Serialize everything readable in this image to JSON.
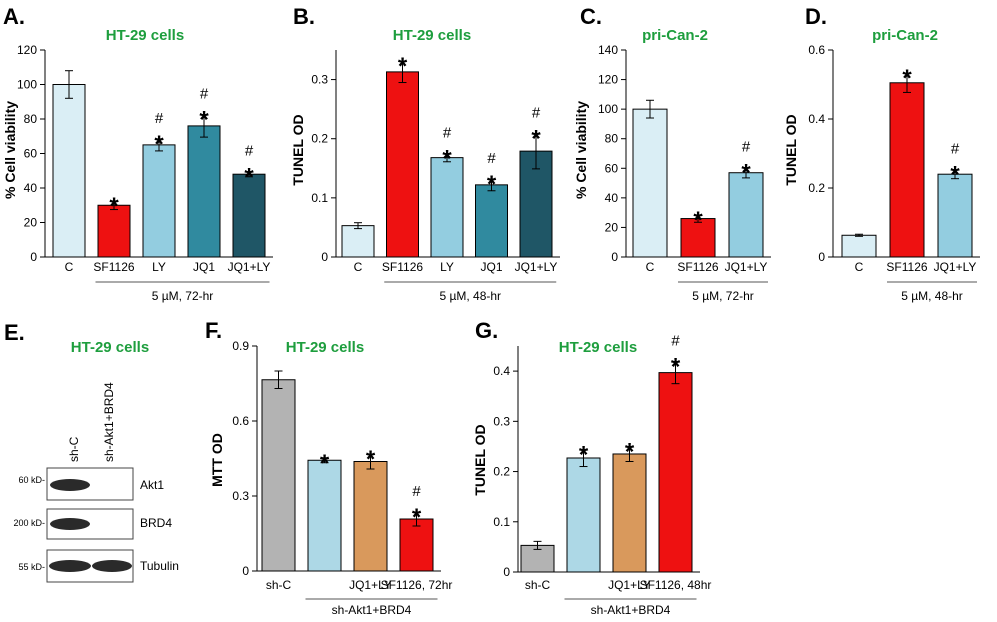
{
  "colors": {
    "ctrl": "#daeef5",
    "sf": "#ee1111",
    "ly": "#93cde0",
    "jq": "#308a9f",
    "jqly_dark": "#1f5666",
    "jqly_light": "#93cde0",
    "shc": "#b3b3b3",
    "shjq": "#add8e6",
    "shjqly": "#d9995c",
    "red_label": "#e02020",
    "title_green": "#1e9e3e"
  },
  "chart_data": [
    {
      "id": "A",
      "letter": "A.",
      "type": "bar",
      "title": "HT-29 cells",
      "ylabel": "% Cell viability",
      "ylim": [
        0,
        120
      ],
      "yticks": [
        0,
        20,
        40,
        60,
        80,
        100,
        120
      ],
      "categories": [
        "C",
        "SF1126",
        "LY",
        "JQ1",
        "JQ1+LY"
      ],
      "values": [
        100,
        30,
        65,
        76,
        48
      ],
      "errors": [
        8,
        2.5,
        3.5,
        6.5,
        1.5
      ],
      "colors": [
        "ctrl",
        "sf",
        "ly",
        "jq",
        "jqly_dark"
      ],
      "red_categories": [
        1
      ],
      "star": [
        false,
        true,
        true,
        true,
        true
      ],
      "hash": [
        false,
        false,
        true,
        true,
        true
      ],
      "group_label": "5 µM, 72-hr",
      "group_from": 1,
      "group_to": 4
    },
    {
      "id": "B",
      "letter": "B.",
      "type": "bar",
      "title": "HT-29 cells",
      "ylabel": "TUNEL OD",
      "ylim": [
        0,
        0.35
      ],
      "yticks": [
        0,
        0.1,
        0.2,
        0.3
      ],
      "ytick_labels": [
        "0",
        "0.1",
        "0.2",
        "0.3"
      ],
      "categories": [
        "C",
        "SF1126",
        "LY",
        "JQ1",
        "JQ1+LY"
      ],
      "values": [
        0.053,
        0.313,
        0.168,
        0.122,
        0.179
      ],
      "errors": [
        0.005,
        0.018,
        0.007,
        0.01,
        0.03
      ],
      "colors": [
        "ctrl",
        "sf",
        "ly",
        "jq",
        "jqly_dark"
      ],
      "red_categories": [
        1
      ],
      "star": [
        false,
        true,
        true,
        true,
        true
      ],
      "hash": [
        false,
        false,
        true,
        true,
        true
      ],
      "group_label": "5 µM, 48-hr",
      "group_from": 1,
      "group_to": 4
    },
    {
      "id": "C",
      "letter": "C.",
      "type": "bar",
      "title": "pri-Can-2",
      "ylabel": "% Cell viability",
      "ylim": [
        0,
        140
      ],
      "yticks": [
        0,
        20,
        40,
        60,
        80,
        100,
        120,
        140
      ],
      "categories": [
        "C",
        "SF1126",
        "JQ1+LY"
      ],
      "values": [
        100,
        26,
        57
      ],
      "errors": [
        6,
        2.5,
        3.5
      ],
      "colors": [
        "ctrl",
        "sf",
        "jqly_light"
      ],
      "red_categories": [
        1
      ],
      "star": [
        false,
        true,
        true
      ],
      "hash": [
        false,
        false,
        true
      ],
      "group_label": "5 µM, 72-hr",
      "group_from": 1,
      "group_to": 2
    },
    {
      "id": "D",
      "letter": "D.",
      "type": "bar",
      "title": "pri-Can-2",
      "ylabel": "TUNEL OD",
      "ylim": [
        0,
        0.6
      ],
      "yticks": [
        0,
        0.2,
        0.4,
        0.6
      ],
      "ytick_labels": [
        "0",
        "0.2",
        "0.4",
        "0.6"
      ],
      "categories": [
        "C",
        "SF1126",
        "JQ1+LY"
      ],
      "values": [
        0.063,
        0.505,
        0.24
      ],
      "errors": [
        0.003,
        0.028,
        0.013
      ],
      "colors": [
        "ctrl",
        "sf",
        "jqly_light"
      ],
      "red_categories": [
        1
      ],
      "star": [
        false,
        true,
        true
      ],
      "hash": [
        false,
        false,
        true
      ],
      "group_label": "5 µM, 48-hr",
      "group_from": 1,
      "group_to": 2
    },
    {
      "id": "F",
      "letter": "F.",
      "type": "bar",
      "title": "HT-29 cells",
      "ylabel": "MTT OD",
      "ylim": [
        0,
        0.9
      ],
      "yticks": [
        0,
        0.3,
        0.6,
        0.9
      ],
      "ytick_labels": [
        "0",
        "0.3",
        "0.6",
        "0.9"
      ],
      "categories": [
        "sh-C",
        "",
        "JQ1+LY",
        "SF1126, 72hr"
      ],
      "values": [
        0.765,
        0.443,
        0.438,
        0.208
      ],
      "errors": [
        0.035,
        0.01,
        0.03,
        0.028
      ],
      "colors": [
        "shc",
        "shjq",
        "shjqly",
        "sf"
      ],
      "red_categories": [
        3
      ],
      "star": [
        false,
        true,
        true,
        true
      ],
      "hash": [
        false,
        false,
        false,
        true
      ],
      "group_label": "sh-Akt1+BRD4",
      "group_from": 1,
      "group_to": 3
    },
    {
      "id": "G",
      "letter": "G.",
      "type": "bar",
      "title": "HT-29 cells",
      "ylabel": "TUNEL OD",
      "ylim": [
        0,
        0.45
      ],
      "yticks": [
        0,
        0.1,
        0.2,
        0.3,
        0.4
      ],
      "ytick_labels": [
        "0",
        "0.1",
        "0.2",
        "0.3",
        "0.4"
      ],
      "categories": [
        "sh-C",
        "",
        "JQ1+LY",
        "SF1126, 48hr"
      ],
      "values": [
        0.053,
        0.227,
        0.235,
        0.397
      ],
      "errors": [
        0.008,
        0.017,
        0.015,
        0.022
      ],
      "colors": [
        "shc",
        "shjq",
        "shjqly",
        "sf"
      ],
      "red_categories": [
        3
      ],
      "star": [
        false,
        true,
        true,
        true
      ],
      "hash": [
        false,
        false,
        false,
        true
      ],
      "group_label": "sh-Akt1+BRD4",
      "group_from": 1,
      "group_to": 3
    }
  ],
  "blot": {
    "letter": "E.",
    "title": "HT-29 cells",
    "lanes": [
      "sh-C",
      "sh-Akt1+BRD4"
    ],
    "rows": [
      {
        "marker": "60 kD-",
        "protein": "Akt1"
      },
      {
        "marker": "200 kD-",
        "protein": "BRD4"
      },
      {
        "marker": "55 kD-",
        "protein": "Tubulin"
      }
    ]
  },
  "symbols": {
    "star": "*",
    "hash": "#"
  }
}
